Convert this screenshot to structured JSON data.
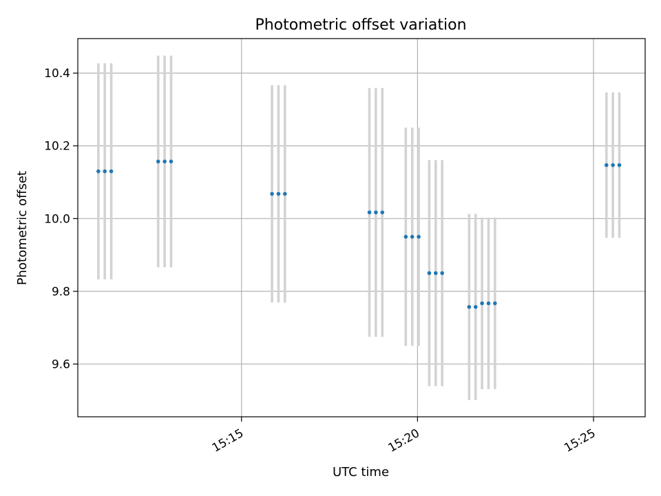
{
  "chart_data": {
    "type": "scatter",
    "title": "Photometric offset variation",
    "xlabel": "UTC time",
    "ylabel": "Photometric offset",
    "x_ticks": [
      "15:15",
      "15:20",
      "15:25"
    ],
    "y_ticks": [
      "9.6",
      "9.8",
      "10.0",
      "10.2",
      "10.4"
    ],
    "xlim": [
      "15:10:21",
      "15:26:28"
    ],
    "ylim": [
      9.455,
      10.495
    ],
    "grid": true,
    "legend": "none",
    "colors": {
      "points": "#1f77b4",
      "errorbars": "#d3d3d3"
    },
    "points": [
      {
        "x": "15:10:56",
        "y": 10.13,
        "yerr": 0.297
      },
      {
        "x": "15:11:07",
        "y": 10.13,
        "yerr": 0.297
      },
      {
        "x": "15:11:18",
        "y": 10.13,
        "yerr": 0.297
      },
      {
        "x": "15:12:38",
        "y": 10.157,
        "yerr": 0.291
      },
      {
        "x": "15:12:49",
        "y": 10.157,
        "yerr": 0.291
      },
      {
        "x": "15:13:00",
        "y": 10.157,
        "yerr": 0.291
      },
      {
        "x": "15:15:52",
        "y": 10.068,
        "yerr": 0.299
      },
      {
        "x": "15:16:03",
        "y": 10.068,
        "yerr": 0.299
      },
      {
        "x": "15:16:14",
        "y": 10.068,
        "yerr": 0.299
      },
      {
        "x": "15:18:38",
        "y": 10.017,
        "yerr": 0.342
      },
      {
        "x": "15:18:49",
        "y": 10.017,
        "yerr": 0.342
      },
      {
        "x": "15:19:00",
        "y": 10.017,
        "yerr": 0.342
      },
      {
        "x": "15:19:40",
        "y": 9.95,
        "yerr": 0.3
      },
      {
        "x": "15:19:51",
        "y": 9.95,
        "yerr": 0.3
      },
      {
        "x": "15:20:02",
        "y": 9.95,
        "yerr": 0.3
      },
      {
        "x": "15:20:20",
        "y": 9.85,
        "yerr": 0.311
      },
      {
        "x": "15:20:31",
        "y": 9.85,
        "yerr": 0.311
      },
      {
        "x": "15:20:42",
        "y": 9.85,
        "yerr": 0.311
      },
      {
        "x": "15:21:28",
        "y": 9.757,
        "yerr": 0.256
      },
      {
        "x": "15:21:39",
        "y": 9.757,
        "yerr": 0.256
      },
      {
        "x": "15:21:50",
        "y": 9.767,
        "yerr": 0.236
      },
      {
        "x": "15:22:01",
        "y": 9.767,
        "yerr": 0.236
      },
      {
        "x": "15:22:12",
        "y": 9.767,
        "yerr": 0.236
      },
      {
        "x": "15:25:22",
        "y": 10.147,
        "yerr": 0.2
      },
      {
        "x": "15:25:33",
        "y": 10.147,
        "yerr": 0.2
      },
      {
        "x": "15:25:44",
        "y": 10.147,
        "yerr": 0.2
      }
    ]
  }
}
